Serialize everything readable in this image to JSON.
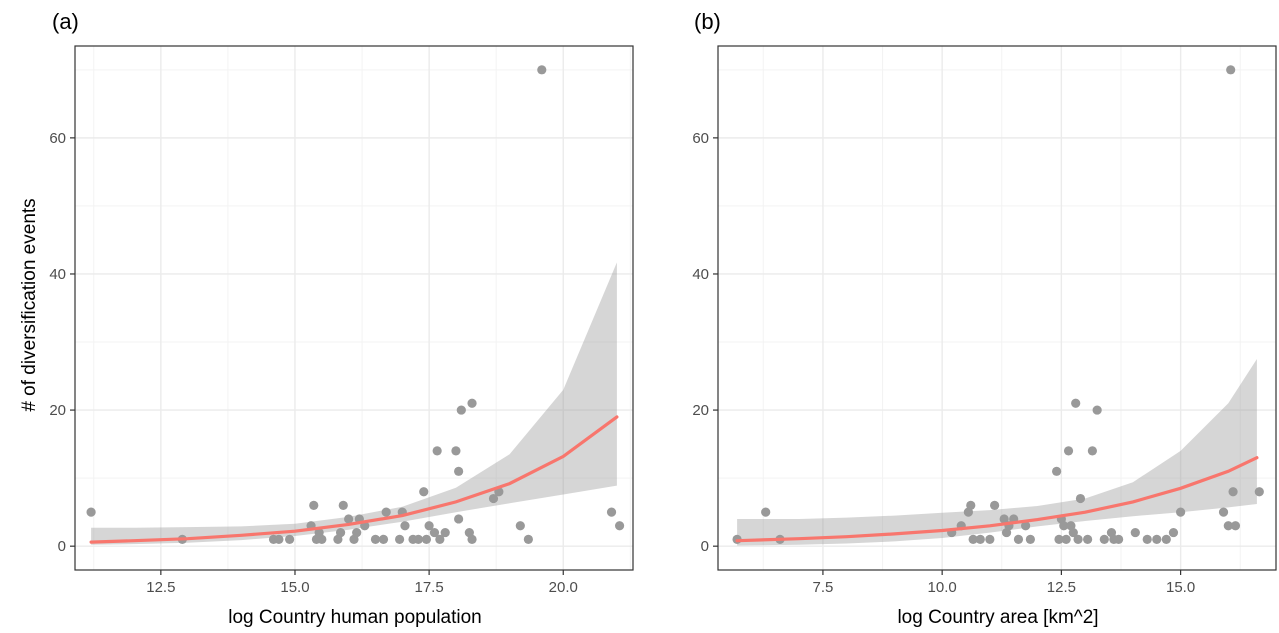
{
  "colors": {
    "points": "#999999",
    "fit_line": "#F8766D",
    "ribbon": "#999999",
    "grid_major": "#ebebeb",
    "grid_minor": "#f3f3f3",
    "panel_border": "#333333"
  },
  "chart_data": [
    {
      "type": "scatter",
      "panel_label": "(a)",
      "xlabel": "log Country human population",
      "ylabel": "# of diversification events",
      "xlim": [
        10.9,
        21.3
      ],
      "ylim": [
        -3.5,
        73.5
      ],
      "xticks": [
        12.5,
        15.0,
        17.5,
        20.0
      ],
      "xtick_labels": [
        "12.5",
        "15.0",
        "17.5",
        "20.0"
      ],
      "yticks": [
        0,
        20,
        40,
        60
      ],
      "ytick_labels": [
        "0",
        "20",
        "40",
        "60"
      ],
      "grid": true,
      "points": [
        {
          "x": 11.2,
          "y": 5
        },
        {
          "x": 12.9,
          "y": 1
        },
        {
          "x": 14.6,
          "y": 1
        },
        {
          "x": 14.7,
          "y": 1
        },
        {
          "x": 14.9,
          "y": 1
        },
        {
          "x": 15.3,
          "y": 3
        },
        {
          "x": 15.35,
          "y": 6
        },
        {
          "x": 15.4,
          "y": 1
        },
        {
          "x": 15.45,
          "y": 2
        },
        {
          "x": 15.5,
          "y": 1
        },
        {
          "x": 15.8,
          "y": 1
        },
        {
          "x": 15.85,
          "y": 2
        },
        {
          "x": 15.9,
          "y": 6
        },
        {
          "x": 16.0,
          "y": 4
        },
        {
          "x": 16.1,
          "y": 1
        },
        {
          "x": 16.15,
          "y": 2
        },
        {
          "x": 16.2,
          "y": 4
        },
        {
          "x": 16.3,
          "y": 3
        },
        {
          "x": 16.5,
          "y": 1
        },
        {
          "x": 16.65,
          "y": 1
        },
        {
          "x": 16.7,
          "y": 5
        },
        {
          "x": 16.95,
          "y": 1
        },
        {
          "x": 17.0,
          "y": 5
        },
        {
          "x": 17.05,
          "y": 3
        },
        {
          "x": 17.2,
          "y": 1
        },
        {
          "x": 17.3,
          "y": 1
        },
        {
          "x": 17.4,
          "y": 8
        },
        {
          "x": 17.45,
          "y": 1
        },
        {
          "x": 17.5,
          "y": 3
        },
        {
          "x": 17.6,
          "y": 2
        },
        {
          "x": 17.65,
          "y": 14
        },
        {
          "x": 17.7,
          "y": 1
        },
        {
          "x": 17.8,
          "y": 2
        },
        {
          "x": 18.0,
          "y": 14
        },
        {
          "x": 18.05,
          "y": 11
        },
        {
          "x": 18.05,
          "y": 4
        },
        {
          "x": 18.1,
          "y": 20
        },
        {
          "x": 18.25,
          "y": 2
        },
        {
          "x": 18.3,
          "y": 1
        },
        {
          "x": 18.3,
          "y": 21
        },
        {
          "x": 18.7,
          "y": 7
        },
        {
          "x": 18.8,
          "y": 8
        },
        {
          "x": 19.2,
          "y": 3
        },
        {
          "x": 19.35,
          "y": 1
        },
        {
          "x": 19.6,
          "y": 70
        },
        {
          "x": 20.9,
          "y": 5
        },
        {
          "x": 21.05,
          "y": 3
        }
      ],
      "fit": {
        "x": [
          11.2,
          12.0,
          13.0,
          14.0,
          15.0,
          16.0,
          17.0,
          18.0,
          19.0,
          20.0,
          21.0
        ],
        "y": [
          0.6,
          0.8,
          1.1,
          1.6,
          2.2,
          3.2,
          4.5,
          6.5,
          9.2,
          13.2,
          19.0
        ],
        "lower": [
          0.2,
          0.3,
          0.5,
          0.9,
          1.5,
          2.4,
          3.6,
          5.0,
          6.3,
          7.6,
          8.9
        ],
        "upper": [
          2.7,
          2.7,
          2.8,
          2.9,
          3.3,
          4.3,
          5.8,
          8.6,
          13.5,
          23.0,
          41.7
        ]
      }
    },
    {
      "type": "scatter",
      "panel_label": "(b)",
      "xlabel": "log Country area [km^2]",
      "ylabel": "",
      "xlim": [
        5.3,
        17.0
      ],
      "ylim": [
        -3.5,
        73.5
      ],
      "xticks": [
        7.5,
        10.0,
        12.5,
        15.0
      ],
      "xtick_labels": [
        "7.5",
        "10.0",
        "12.5",
        "15.0"
      ],
      "yticks": [
        0,
        20,
        40,
        60
      ],
      "ytick_labels": [
        "0",
        "20",
        "40",
        "60"
      ],
      "grid": true,
      "points": [
        {
          "x": 5.7,
          "y": 1
        },
        {
          "x": 6.3,
          "y": 5
        },
        {
          "x": 6.6,
          "y": 1
        },
        {
          "x": 10.2,
          "y": 2
        },
        {
          "x": 10.4,
          "y": 3
        },
        {
          "x": 10.55,
          "y": 5
        },
        {
          "x": 10.6,
          "y": 6
        },
        {
          "x": 10.65,
          "y": 1
        },
        {
          "x": 10.8,
          "y": 1
        },
        {
          "x": 11.0,
          "y": 1
        },
        {
          "x": 11.1,
          "y": 6
        },
        {
          "x": 11.3,
          "y": 4
        },
        {
          "x": 11.35,
          "y": 2
        },
        {
          "x": 11.4,
          "y": 3
        },
        {
          "x": 11.5,
          "y": 4
        },
        {
          "x": 11.6,
          "y": 1
        },
        {
          "x": 11.75,
          "y": 3
        },
        {
          "x": 11.85,
          "y": 1
        },
        {
          "x": 12.4,
          "y": 11
        },
        {
          "x": 12.45,
          "y": 1
        },
        {
          "x": 12.5,
          "y": 4
        },
        {
          "x": 12.55,
          "y": 3
        },
        {
          "x": 12.6,
          "y": 1
        },
        {
          "x": 12.65,
          "y": 14
        },
        {
          "x": 12.7,
          "y": 3
        },
        {
          "x": 12.75,
          "y": 2
        },
        {
          "x": 12.8,
          "y": 21
        },
        {
          "x": 12.85,
          "y": 1
        },
        {
          "x": 12.9,
          "y": 7
        },
        {
          "x": 13.05,
          "y": 1
        },
        {
          "x": 13.15,
          "y": 14
        },
        {
          "x": 13.25,
          "y": 20
        },
        {
          "x": 13.4,
          "y": 1
        },
        {
          "x": 13.55,
          "y": 2
        },
        {
          "x": 13.6,
          "y": 1
        },
        {
          "x": 13.7,
          "y": 1
        },
        {
          "x": 14.05,
          "y": 2
        },
        {
          "x": 14.3,
          "y": 1
        },
        {
          "x": 14.5,
          "y": 1
        },
        {
          "x": 14.7,
          "y": 1
        },
        {
          "x": 14.85,
          "y": 2
        },
        {
          "x": 15.0,
          "y": 5
        },
        {
          "x": 15.9,
          "y": 5
        },
        {
          "x": 16.0,
          "y": 3
        },
        {
          "x": 16.05,
          "y": 70
        },
        {
          "x": 16.1,
          "y": 8
        },
        {
          "x": 16.15,
          "y": 3
        },
        {
          "x": 16.65,
          "y": 8
        }
      ],
      "fit": {
        "x": [
          5.7,
          7.0,
          8.0,
          9.0,
          10.0,
          11.0,
          12.0,
          13.0,
          14.0,
          15.0,
          16.0,
          16.6
        ],
        "y": [
          0.8,
          1.1,
          1.4,
          1.8,
          2.3,
          3.0,
          3.9,
          5.0,
          6.5,
          8.5,
          11.0,
          13.0
        ],
        "lower": [
          0.1,
          0.2,
          0.4,
          0.7,
          1.2,
          2.0,
          2.9,
          3.7,
          4.4,
          5.0,
          5.7,
          6.2
        ],
        "upper": [
          4.0,
          4.0,
          4.2,
          4.5,
          4.9,
          5.3,
          5.9,
          7.0,
          9.4,
          14.0,
          21.0,
          27.5
        ]
      }
    }
  ]
}
